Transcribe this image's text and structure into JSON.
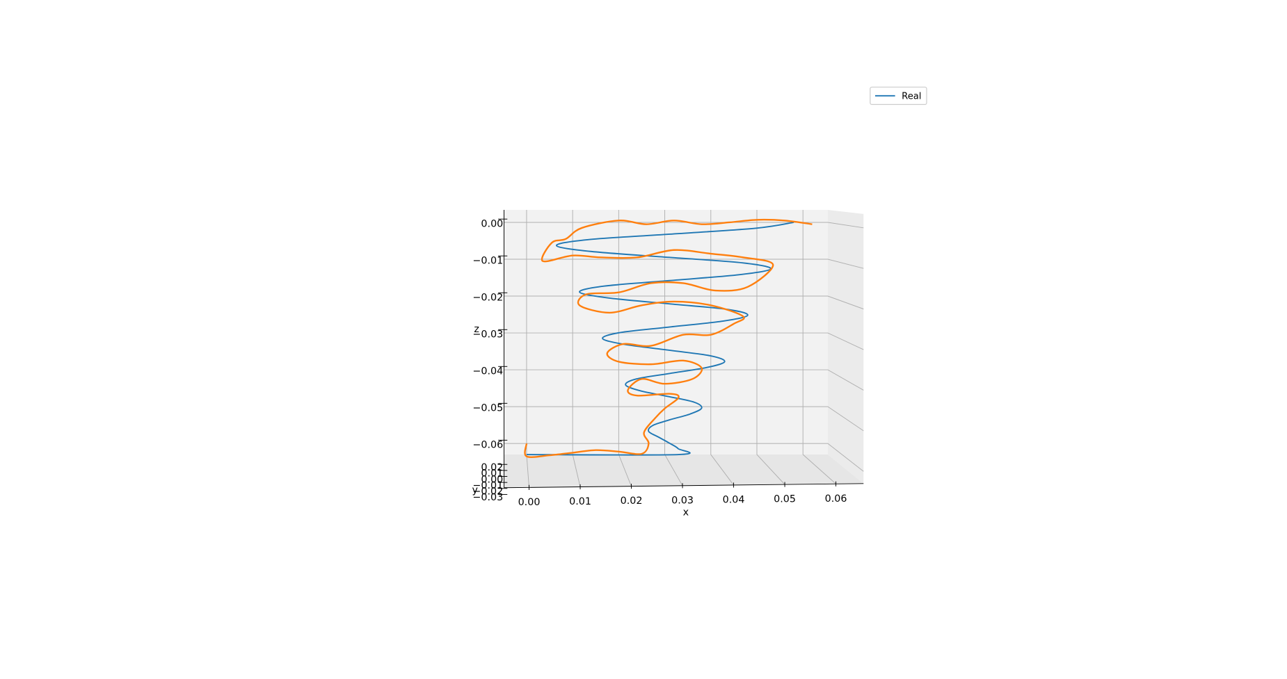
{
  "chart_data": {
    "type": "line3d",
    "xlabel": "x",
    "ylabel": "y",
    "zlabel": "z",
    "xlim": [
      -0.0049,
      0.0654
    ],
    "ylim": [
      -0.034,
      0.024
    ],
    "zlim": [
      -0.063,
      0.0034
    ],
    "xticks": [
      {
        "value": 0,
        "label": "0.00"
      },
      {
        "value": 0.01,
        "label": "0.01"
      },
      {
        "value": 0.02,
        "label": "0.02"
      },
      {
        "value": 0.03,
        "label": "0.03"
      },
      {
        "value": 0.04,
        "label": "0.04"
      },
      {
        "value": 0.05,
        "label": "0.05"
      },
      {
        "value": 0.06,
        "label": "0.06"
      }
    ],
    "yticks": [
      {
        "value": 0.02,
        "label": "0.02"
      },
      {
        "value": 0.01,
        "label": "0.01"
      },
      {
        "value": 0,
        "label": "0.00"
      },
      {
        "value": -0.01,
        "label": "−0.01"
      },
      {
        "value": -0.02,
        "label": "−0.02"
      },
      {
        "value": -0.03,
        "label": "−0.03"
      }
    ],
    "zticks": [
      {
        "value": 0,
        "label": "0.00"
      },
      {
        "value": -0.01,
        "label": "−0.01"
      },
      {
        "value": -0.02,
        "label": "−0.02"
      },
      {
        "value": -0.03,
        "label": "−0.03"
      },
      {
        "value": -0.04,
        "label": "−0.04"
      },
      {
        "value": -0.05,
        "label": "−0.05"
      },
      {
        "value": -0.06,
        "label": "−0.06"
      }
    ],
    "grid": true,
    "legend": "upper right",
    "series": [
      {
        "name": "Real",
        "color": "#1f77b4",
        "x": [
          0.058,
          0.0497,
          0.031,
          0.0132,
          0.0065,
          0.0141,
          0.031,
          0.047,
          0.053,
          0.0461,
          0.031,
          0.0168,
          0.0115,
          0.0177,
          0.031,
          0.0435,
          0.048,
          0.0426,
          0.031,
          0.0203,
          0.0165,
          0.0212,
          0.031,
          0.0399,
          0.043,
          0.039,
          0.031,
          0.0238,
          0.0215,
          0.0247,
          0.031,
          0.0364,
          0.038,
          0.0355,
          0.031,
          0.0274,
          0.0265,
          0.0287,
          0.031,
          0.0329,
          0.033,
          0.0
        ],
        "z": [
          0.0,
          -0.0016,
          -0.0032,
          -0.0047,
          -0.0063,
          -0.0079,
          -0.0095,
          -0.011,
          -0.0126,
          -0.0142,
          -0.0158,
          -0.0173,
          -0.0189,
          -0.0205,
          -0.0221,
          -0.0236,
          -0.0252,
          -0.0268,
          -0.0284,
          -0.0299,
          -0.0315,
          -0.0331,
          -0.0347,
          -0.0362,
          -0.0378,
          -0.0394,
          -0.041,
          -0.0425,
          -0.0441,
          -0.0457,
          -0.0473,
          -0.0488,
          -0.0504,
          -0.052,
          -0.0536,
          -0.0551,
          -0.0567,
          -0.0583,
          -0.0599,
          -0.0614,
          -0.063,
          -0.063
        ]
      },
      {
        "color": "#ff7f0e",
        "x": [
          0.0,
          0.0,
          0.005,
          0.01,
          0.015,
          0.02,
          0.025,
          0.0265,
          0.0255,
          0.028,
          0.03,
          0.033,
          0.031,
          0.024,
          0.022,
          0.025,
          0.03,
          0.036,
          0.038,
          0.034,
          0.027,
          0.02,
          0.0175,
          0.021,
          0.027,
          0.034,
          0.04,
          0.045,
          0.047,
          0.04,
          0.032,
          0.025,
          0.018,
          0.0115,
          0.013,
          0.02,
          0.027,
          0.034,
          0.041,
          0.048,
          0.0535,
          0.047,
          0.04,
          0.032,
          0.024,
          0.016,
          0.01,
          0.0035,
          0.0055,
          0.0085,
          0.012,
          0.02,
          0.026,
          0.032,
          0.038,
          0.044,
          0.05,
          0.056,
          0.062
        ],
        "z": [
          -0.06,
          -0.0635,
          -0.0632,
          -0.0625,
          -0.0618,
          -0.0622,
          -0.0628,
          -0.06,
          -0.057,
          -0.053,
          -0.0505,
          -0.0475,
          -0.0465,
          -0.047,
          -0.0455,
          -0.0425,
          -0.0438,
          -0.0425,
          -0.0395,
          -0.0375,
          -0.0385,
          -0.0378,
          -0.0355,
          -0.033,
          -0.0335,
          -0.0305,
          -0.0305,
          -0.0275,
          -0.0255,
          -0.0225,
          -0.0215,
          -0.0225,
          -0.0245,
          -0.0225,
          -0.0195,
          -0.019,
          -0.0165,
          -0.0165,
          -0.0185,
          -0.0175,
          -0.0115,
          -0.0095,
          -0.0085,
          -0.0075,
          -0.0095,
          -0.0095,
          -0.009,
          -0.0105,
          -0.0055,
          -0.0045,
          -0.0015,
          0.0005,
          -0.0005,
          0.0005,
          -0.0005,
          0.0,
          0.0007,
          0.0005,
          -0.0005
        ]
      }
    ]
  }
}
